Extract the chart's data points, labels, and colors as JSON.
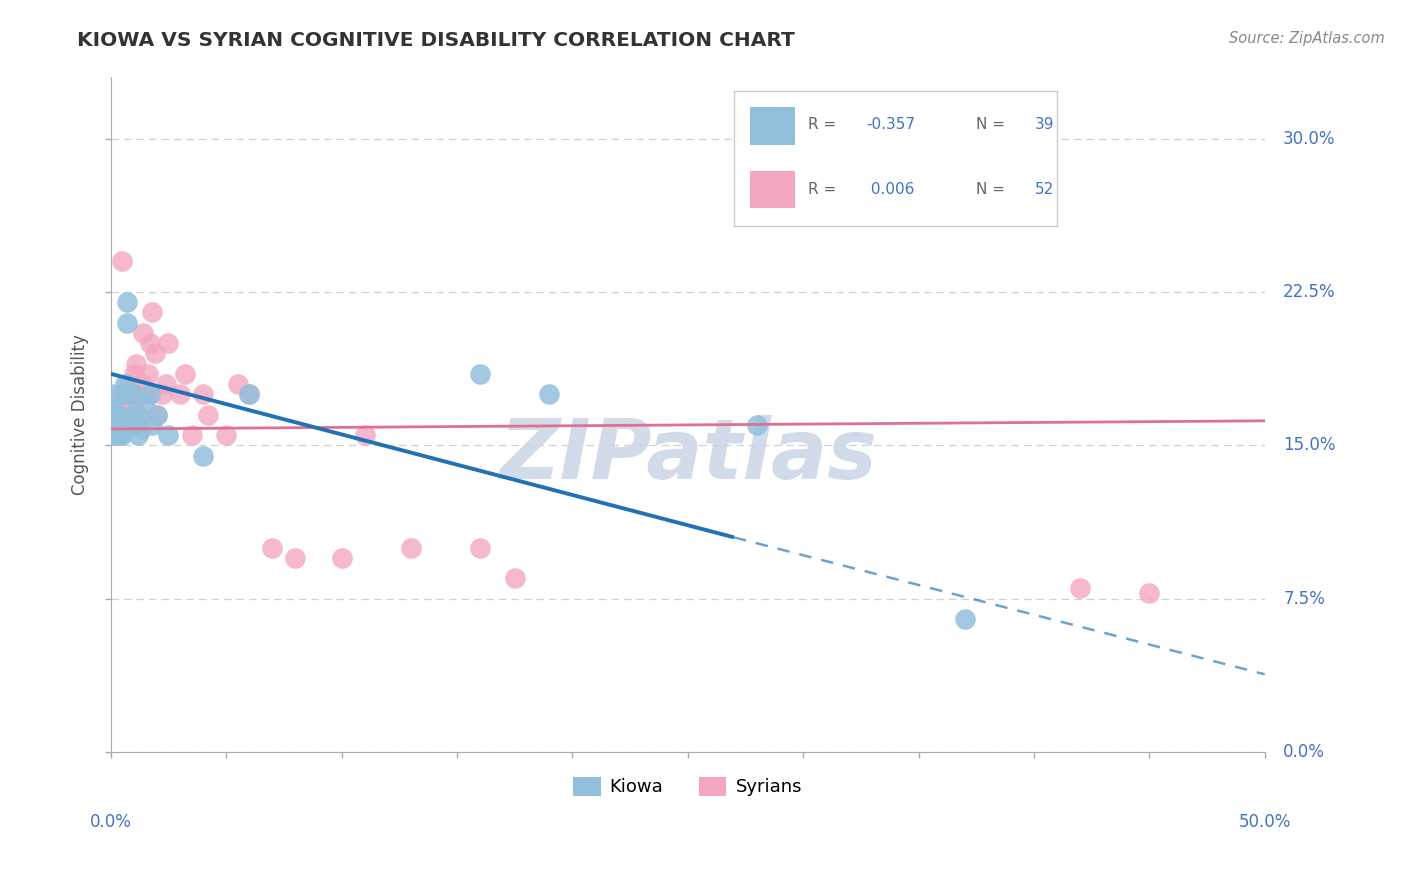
{
  "title": "KIOWA VS SYRIAN COGNITIVE DISABILITY CORRELATION CHART",
  "source": "Source: ZipAtlas.com",
  "ylabel": "Cognitive Disability",
  "ytick_labels": [
    "0.0%",
    "7.5%",
    "15.0%",
    "22.5%",
    "30.0%"
  ],
  "ytick_values": [
    0.0,
    0.075,
    0.15,
    0.225,
    0.3
  ],
  "xlim": [
    0.0,
    0.5
  ],
  "ylim": [
    0.0,
    0.33
  ],
  "kiowa_R": -0.357,
  "kiowa_N": 39,
  "syrian_R": 0.006,
  "syrian_N": 52,
  "kiowa_color": "#92c0dc",
  "syrian_color": "#f4a6c0",
  "kiowa_line_color": "#2171b5",
  "syrian_line_color": "#e07090",
  "grid_color": "#d0d0d0",
  "background": "#ffffff",
  "watermark": "ZIPatlas",
  "axis_label_color": "#4472C4",
  "title_color": "#333333",
  "source_color": "#888888",
  "kiowa_line_start_x": 0.0,
  "kiowa_line_start_y": 0.185,
  "kiowa_line_solid_end_x": 0.27,
  "kiowa_line_solid_end_y": 0.105,
  "kiowa_line_dash_end_x": 0.5,
  "kiowa_line_dash_end_y": 0.038,
  "syrian_line_start_x": 0.0,
  "syrian_line_start_y": 0.158,
  "syrian_line_end_x": 0.5,
  "syrian_line_end_y": 0.162,
  "kiowa_x": [
    0.001,
    0.001,
    0.001,
    0.001,
    0.002,
    0.002,
    0.002,
    0.003,
    0.003,
    0.003,
    0.003,
    0.004,
    0.004,
    0.004,
    0.005,
    0.005,
    0.006,
    0.006,
    0.007,
    0.007,
    0.008,
    0.009,
    0.01,
    0.01,
    0.011,
    0.012,
    0.013,
    0.015,
    0.017,
    0.018,
    0.02,
    0.025,
    0.04,
    0.06,
    0.16,
    0.19,
    0.28,
    0.3,
    0.37
  ],
  "kiowa_y": [
    0.162,
    0.165,
    0.17,
    0.175,
    0.155,
    0.16,
    0.165,
    0.158,
    0.162,
    0.165,
    0.16,
    0.155,
    0.158,
    0.163,
    0.155,
    0.16,
    0.175,
    0.18,
    0.21,
    0.22,
    0.175,
    0.165,
    0.16,
    0.175,
    0.165,
    0.155,
    0.158,
    0.17,
    0.175,
    0.16,
    0.165,
    0.155,
    0.145,
    0.175,
    0.185,
    0.175,
    0.16,
    0.29,
    0.065
  ],
  "syrian_x": [
    0.001,
    0.001,
    0.001,
    0.002,
    0.002,
    0.003,
    0.003,
    0.003,
    0.004,
    0.004,
    0.005,
    0.005,
    0.005,
    0.006,
    0.006,
    0.007,
    0.007,
    0.008,
    0.008,
    0.009,
    0.01,
    0.01,
    0.011,
    0.012,
    0.013,
    0.014,
    0.015,
    0.016,
    0.017,
    0.018,
    0.019,
    0.02,
    0.022,
    0.024,
    0.025,
    0.03,
    0.032,
    0.035,
    0.04,
    0.042,
    0.05,
    0.055,
    0.06,
    0.07,
    0.08,
    0.1,
    0.11,
    0.13,
    0.16,
    0.175,
    0.42,
    0.45
  ],
  "syrian_y": [
    0.155,
    0.158,
    0.162,
    0.16,
    0.165,
    0.155,
    0.158,
    0.162,
    0.158,
    0.165,
    0.24,
    0.16,
    0.175,
    0.158,
    0.162,
    0.17,
    0.175,
    0.18,
    0.175,
    0.165,
    0.17,
    0.185,
    0.19,
    0.165,
    0.18,
    0.205,
    0.175,
    0.185,
    0.2,
    0.215,
    0.195,
    0.165,
    0.175,
    0.18,
    0.2,
    0.175,
    0.185,
    0.155,
    0.175,
    0.165,
    0.155,
    0.18,
    0.175,
    0.1,
    0.095,
    0.095,
    0.155,
    0.1,
    0.1,
    0.085,
    0.08,
    0.078
  ]
}
